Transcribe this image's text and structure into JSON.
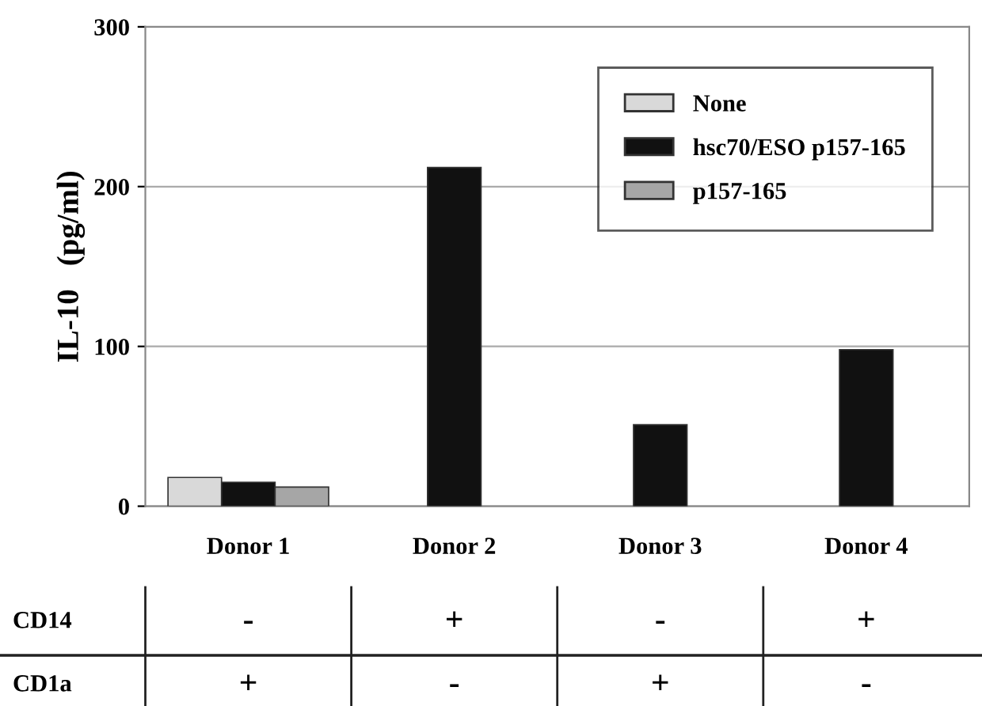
{
  "chart_data": {
    "type": "bar",
    "ylabel": "IL-10   (pg/ml)",
    "categories": [
      "Donor 1",
      "Donor 2",
      "Donor 3",
      "Donor 4"
    ],
    "series": [
      {
        "name": "None",
        "color": "#d9d9d9",
        "values": [
          18,
          null,
          null,
          null
        ]
      },
      {
        "name": "hsc70/ESO p157-165",
        "color": "#111111",
        "values": [
          15,
          212,
          51,
          98
        ]
      },
      {
        "name": "p157-165",
        "color": "#a6a6a6",
        "values": [
          12,
          null,
          null,
          null
        ]
      }
    ],
    "ylim": [
      0,
      300
    ],
    "yticks": [
      0,
      100,
      200,
      300
    ],
    "grid": "y",
    "legend": "top right",
    "annotations": [
      "CD14",
      "-",
      "+",
      "-",
      "+",
      "CD1a",
      "+",
      "-",
      "+",
      "-"
    ]
  }
}
